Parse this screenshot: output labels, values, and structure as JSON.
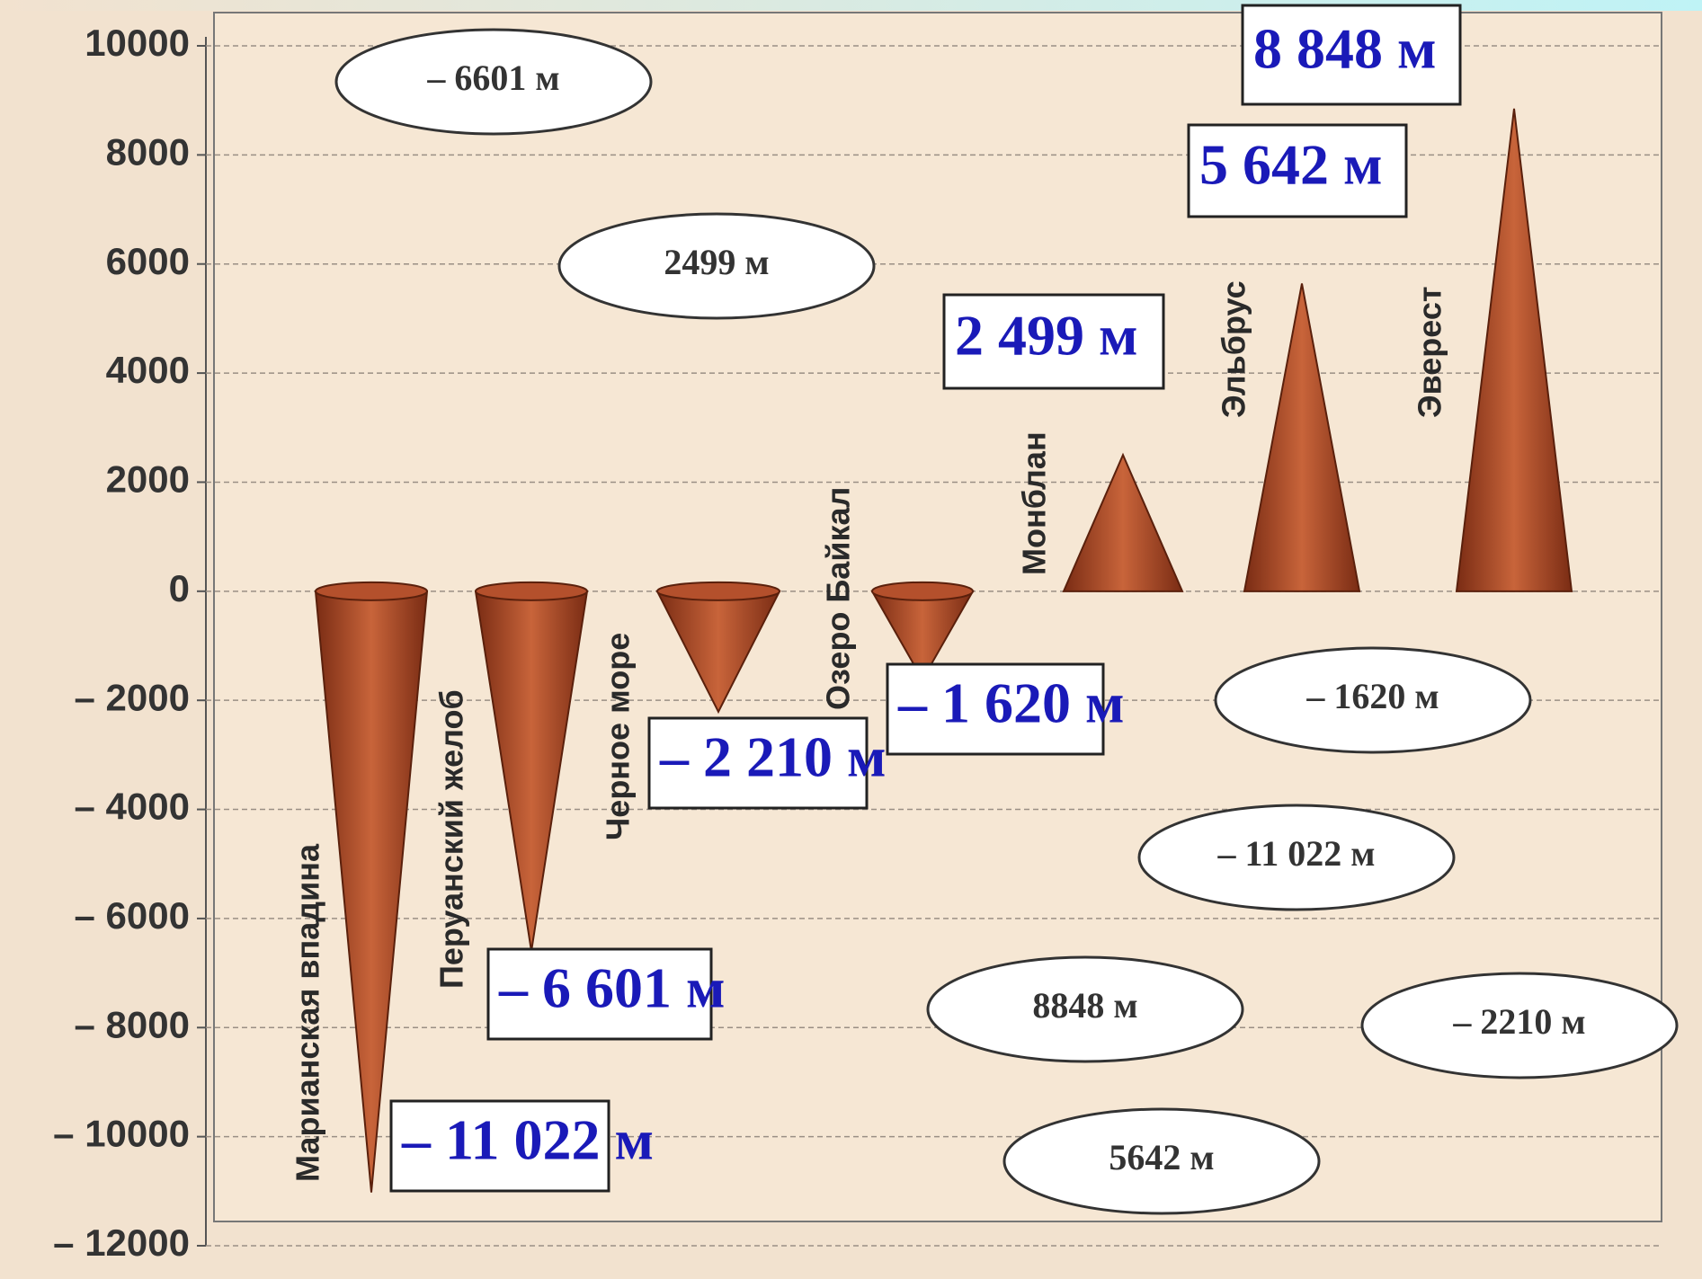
{
  "chart_data": {
    "type": "cone",
    "categories": [
      "Марианская впадина",
      "Перуанский желоб",
      "Черное море",
      "Озеро Байкал",
      "Монблан",
      "Эльбрус",
      "Эверест"
    ],
    "values": [
      -11022,
      -6601,
      -2210,
      -1620,
      2499,
      5642,
      8848
    ],
    "value_labels": [
      "– 11 022 м",
      "– 6 601 м",
      "– 2 210 м",
      "– 1 620 м",
      "2 499 м",
      "5 642 м",
      "8 848 м"
    ],
    "color": "#b4502c",
    "ylim": [
      -12000,
      10000
    ],
    "yticks": [
      {
        "value": -12000,
        "label": "– 12000"
      },
      {
        "value": -10000,
        "label": "– 10000"
      },
      {
        "value": -8000,
        "label": "– 8000"
      },
      {
        "value": -6000,
        "label": "– 6000"
      },
      {
        "value": -4000,
        "label": "– 4000"
      },
      {
        "value": -2000,
        "label": "– 2000"
      },
      0,
      2000,
      4000,
      6000,
      8000,
      10000
    ],
    "grid": true,
    "annotations": [
      "– 6601 м",
      "2499 м",
      "– 1620 м",
      "– 11 022 м",
      "8848 м",
      "– 2210 м",
      "5642 м"
    ]
  }
}
